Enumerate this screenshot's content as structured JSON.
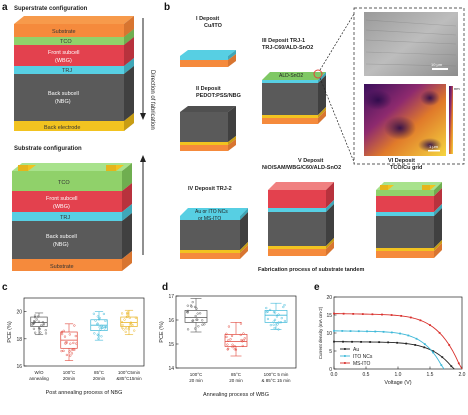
{
  "panel_letters": {
    "a": "a",
    "b": "b",
    "c": "c",
    "d": "d",
    "e": "e"
  },
  "panel_a": {
    "superstrate_title": "Superstrate configuration",
    "substrate_title": "Substrate configuration",
    "arrow_label": "Direction  of   fabrication",
    "superstrate_layers": [
      "Substrate",
      "TCO",
      "Front subcell",
      "(WBG)",
      "TRJ",
      "Back subcell",
      "(NBG)",
      "Back electrode"
    ],
    "substrate_layers": [
      "TCO",
      "Front subcell",
      "(WBG)",
      "TRJ",
      "Back subcell",
      "(NBG)",
      "Substrate"
    ]
  },
  "panel_b": {
    "steps": [
      {
        "num": "I",
        "line1": "Deposit",
        "line2": "Cu/ITO"
      },
      {
        "num": "II",
        "line1": "Deposit",
        "line2": "PEDOT:PSS/NBG"
      },
      {
        "num": "III",
        "line1": "Deposit TRJ-1",
        "line2": "TRJ-C60/ALD-SnO2"
      },
      {
        "num": "IV",
        "line1": "Deposit TRJ-2",
        "line2": ""
      },
      {
        "num": "V",
        "line1": "Deposit",
        "line2": "NiO/SAM/WBG/C60/ALD-SnO2"
      },
      {
        "num": "VI",
        "line1": "Deposit",
        "line2": "TCO/Cu grid"
      }
    ],
    "ald_label": "ALD-SnO2",
    "trj2_label1": "Au or ITO NCs",
    "trj2_label2": "or MS-ITO",
    "scale_bar": "10 μm",
    "map_scale": "1 μm",
    "map_unit": "nm",
    "footer": "Fabrication process of substrate tandem"
  },
  "chart_data": [
    {
      "type": "box",
      "panel": "c",
      "ylabel": "PCE (%)",
      "xlabel": "Post annealing process of NBG",
      "ylim": [
        16,
        21
      ],
      "yticks": [
        16,
        18,
        20
      ],
      "categories": [
        "W/O annealing",
        "100°C 20min",
        "85°C 20min",
        "100°C5min &85°C15min"
      ],
      "colors": [
        "#555555",
        "#e0453a",
        "#3db8d8",
        "#e8b21e"
      ],
      "boxes": [
        {
          "q1": 18.9,
          "median": 19.2,
          "q3": 19.6,
          "min": 18.3,
          "max": 19.9
        },
        {
          "q1": 17.3,
          "median": 17.9,
          "q3": 18.5,
          "min": 16.4,
          "max": 19.1
        },
        {
          "q1": 18.6,
          "median": 19.0,
          "q3": 19.4,
          "min": 17.9,
          "max": 20.0
        },
        {
          "q1": 18.9,
          "median": 19.2,
          "q3": 19.6,
          "min": 18.3,
          "max": 20.1
        }
      ]
    },
    {
      "type": "box",
      "panel": "d",
      "ylabel": "PCE (%)",
      "xlabel": "Annealing process of WBG",
      "ylim": [
        14,
        17
      ],
      "yticks": [
        14,
        15,
        16,
        17
      ],
      "categories": [
        "100°C 20 min",
        "85°C 20 min",
        "100°C 5 min & 85°C 15 min"
      ],
      "colors": [
        "#555555",
        "#e0453a",
        "#3db8d8"
      ],
      "boxes": [
        {
          "q1": 15.9,
          "median": 16.1,
          "q3": 16.4,
          "min": 15.5,
          "max": 16.9
        },
        {
          "q1": 14.9,
          "median": 15.1,
          "q3": 15.4,
          "min": 14.5,
          "max": 15.9
        },
        {
          "q1": 15.9,
          "median": 16.2,
          "q3": 16.4,
          "min": 15.6,
          "max": 16.7
        }
      ]
    },
    {
      "type": "line",
      "panel": "e",
      "ylabel": "Current density (mA cm-2)",
      "xlabel": "Voltage (V)",
      "xlim": [
        0,
        2
      ],
      "ylim": [
        0,
        20
      ],
      "xticks": [
        0.0,
        0.5,
        1.0,
        1.5,
        2.0
      ],
      "yticks": [
        0,
        5,
        10,
        15,
        20
      ],
      "legend_position": "bottom-left",
      "series": [
        {
          "name": "Au",
          "color": "#222222",
          "jsc": 7.6,
          "voc": 1.88,
          "n": 0.9
        },
        {
          "name": "ITO NCs",
          "color": "#3db8d8",
          "jsc": 10.6,
          "voc": 1.72,
          "n": 0.75
        },
        {
          "name": "MS-ITO",
          "color": "#d9302c",
          "jsc": 15.4,
          "voc": 2.0,
          "n": 0.6
        }
      ]
    }
  ]
}
